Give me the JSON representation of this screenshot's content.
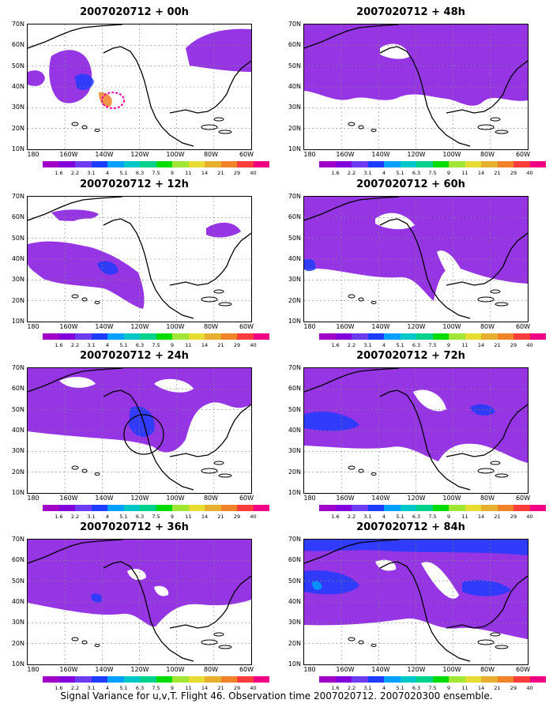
{
  "panels": [
    {
      "title": "2007020712 + 00h"
    },
    {
      "title": "2007020712 + 48h"
    },
    {
      "title": "2007020712 + 12h"
    },
    {
      "title": "2007020712 + 60h"
    },
    {
      "title": "2007020712 + 24h"
    },
    {
      "title": "2007020712 + 72h"
    },
    {
      "title": "2007020712 + 36h"
    },
    {
      "title": "2007020712 + 84h"
    }
  ],
  "lat_labels": [
    "70N",
    "60N",
    "50N",
    "40N",
    "30N",
    "20N",
    "10N"
  ],
  "lon_labels": [
    "180",
    "160W",
    "140W",
    "120W",
    "100W",
    "80W",
    "60W"
  ],
  "colorbar": {
    "labels": [
      "1.6",
      "2.2",
      "3.1",
      "4",
      "5.1",
      "6.3",
      "7.5",
      "9",
      "11",
      "14",
      "21",
      "29",
      "40"
    ],
    "colors": [
      "#a000c8",
      "#8200dc",
      "#6e3cf0",
      "#1e3cff",
      "#00a0ff",
      "#00c8c8",
      "#00d28c",
      "#00dc00",
      "#a0e632",
      "#e6dc32",
      "#e6af2d",
      "#f08228",
      "#fa3c3c",
      "#f00082"
    ]
  },
  "caption": "Signal Variance for u,v,T. Flight 46. Observation time 2007020712. 2007020300 ensemble."
}
